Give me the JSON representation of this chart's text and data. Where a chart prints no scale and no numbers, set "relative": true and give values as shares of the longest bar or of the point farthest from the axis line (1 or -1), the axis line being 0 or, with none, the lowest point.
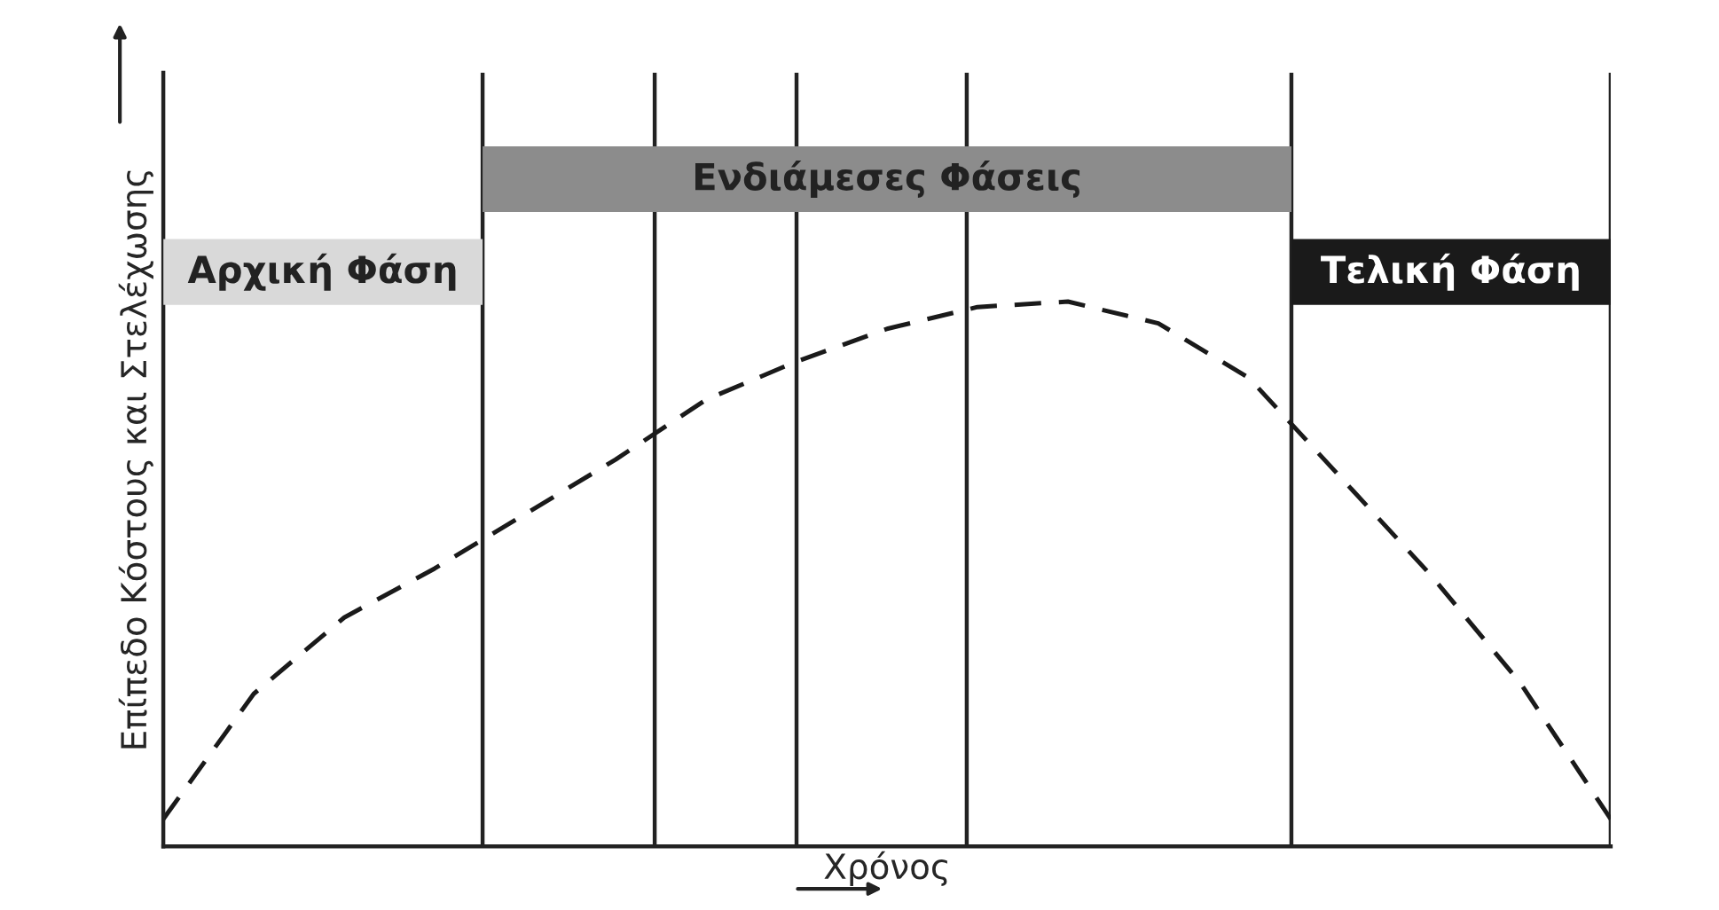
{
  "chart_data": {
    "type": "line",
    "relative": true,
    "xlabel": "Χρόνος",
    "ylabel": "Επίπεδο Κόστους και Στελέχωσης",
    "categories": [
      null,
      null,
      null,
      null,
      null,
      null,
      null,
      null,
      null,
      null,
      null,
      null,
      null,
      null,
      null,
      null,
      null
    ],
    "series": [
      {
        "color": "#1a1a1a",
        "line_style": "dashed",
        "values": [
          0.05,
          0.28,
          0.42,
          0.51,
          0.61,
          0.71,
          0.82,
          0.89,
          0.95,
          0.99,
          1.0,
          0.96,
          0.86,
          0.68,
          0.5,
          0.3,
          0.05
        ]
      }
    ],
    "annotations": [
      "Αρχική Φάση",
      "Ενδιάμεσες Φάσεις",
      "Τελική Φάση"
    ],
    "tick_labels": false,
    "grid": false
  }
}
